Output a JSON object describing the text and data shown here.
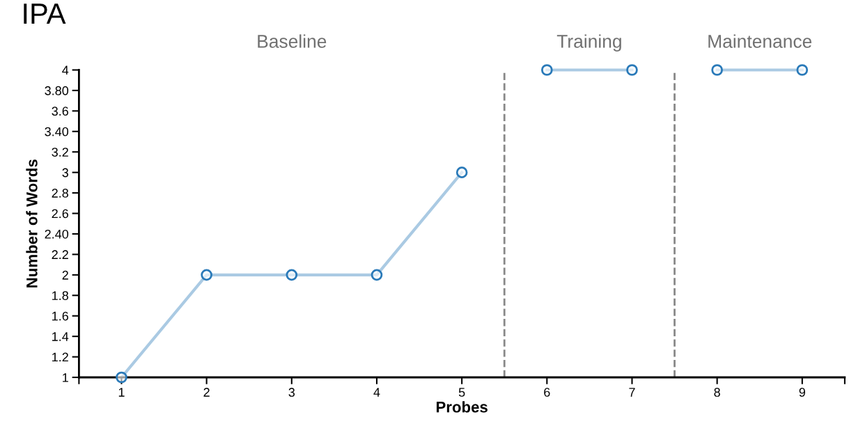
{
  "chart_data": {
    "type": "line",
    "title": "IPA",
    "xlabel": "Probes",
    "ylabel": "Number of Words",
    "series": [
      {
        "color": "#2a7ab9",
        "x": [
          1,
          2,
          3,
          4,
          5
        ],
        "values": [
          1,
          2,
          2,
          2,
          3
        ]
      },
      {
        "color": "#2a7ab9",
        "x": [
          6,
          7
        ],
        "values": [
          4,
          4
        ]
      },
      {
        "color": "#2a7ab9",
        "x": [
          8,
          9
        ],
        "values": [
          4,
          4
        ]
      }
    ],
    "xlim": [
      0.5,
      9.5
    ],
    "xticks": [
      {
        "value": 0.5,
        "label": null
      },
      1,
      2,
      3,
      4,
      5,
      6,
      7,
      8,
      9,
      {
        "value": 9.5,
        "label": null
      }
    ],
    "ylim": [
      1,
      4
    ],
    "yticks": [
      1,
      1.2,
      1.4,
      1.6,
      1.8,
      2,
      2.2,
      {
        "value": 2.4,
        "label": "2.40"
      },
      2.6,
      2.8,
      3,
      3.2,
      {
        "value": 3.4,
        "label": "3.40"
      },
      3.6,
      {
        "value": 3.8,
        "label": "3.80"
      },
      4
    ],
    "ref_lines": [
      {
        "axis": "x",
        "value": 5.5,
        "color": "#888888",
        "line_style": "dashed"
      },
      {
        "axis": "x",
        "value": 7.5,
        "color": "#888888",
        "line_style": "dashed"
      }
    ],
    "annotations": [
      "Baseline",
      "Training",
      "Maintenance"
    ],
    "marker": "circle",
    "line_style": "solid",
    "grid": false,
    "legend": false
  }
}
